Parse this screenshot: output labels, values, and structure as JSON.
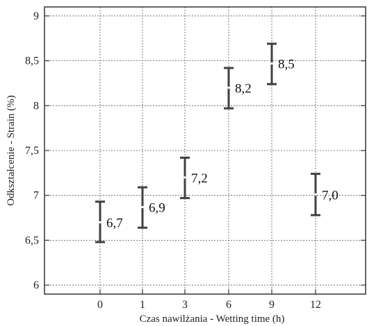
{
  "chart_data": {
    "type": "errorbar",
    "title": "",
    "xlabel": "Czas nawilżania - Wetting time (h)",
    "ylabel": "Odkształcenie - Strain (%)",
    "ylim": [
      5.9,
      9.1
    ],
    "yticks": [
      "6",
      "6,5",
      "7",
      "7,5",
      "8",
      "8,5",
      "9"
    ],
    "ytick_values": [
      6,
      6.5,
      7,
      7.5,
      8,
      8.5,
      9
    ],
    "categories": [
      "0",
      "1",
      "3",
      "6",
      "9",
      "12"
    ],
    "points": [
      {
        "x": "0",
        "mean": 6.7,
        "low": 6.48,
        "high": 6.93,
        "label": "6,7"
      },
      {
        "x": "1",
        "mean": 6.87,
        "low": 6.64,
        "high": 7.09,
        "label": "6,9"
      },
      {
        "x": "3",
        "mean": 7.2,
        "low": 6.97,
        "high": 7.42,
        "label": "7,2"
      },
      {
        "x": "6",
        "mean": 8.2,
        "low": 7.97,
        "high": 8.42,
        "label": "8,2"
      },
      {
        "x": "9",
        "mean": 8.47,
        "low": 8.24,
        "high": 8.69,
        "label": "8,5"
      },
      {
        "x": "12",
        "mean": 7.01,
        "low": 6.78,
        "high": 7.24,
        "label": "7,0"
      }
    ],
    "grid": true,
    "colors": {
      "bars": "#404040",
      "grid": "#555555",
      "frame": "#333333"
    }
  }
}
